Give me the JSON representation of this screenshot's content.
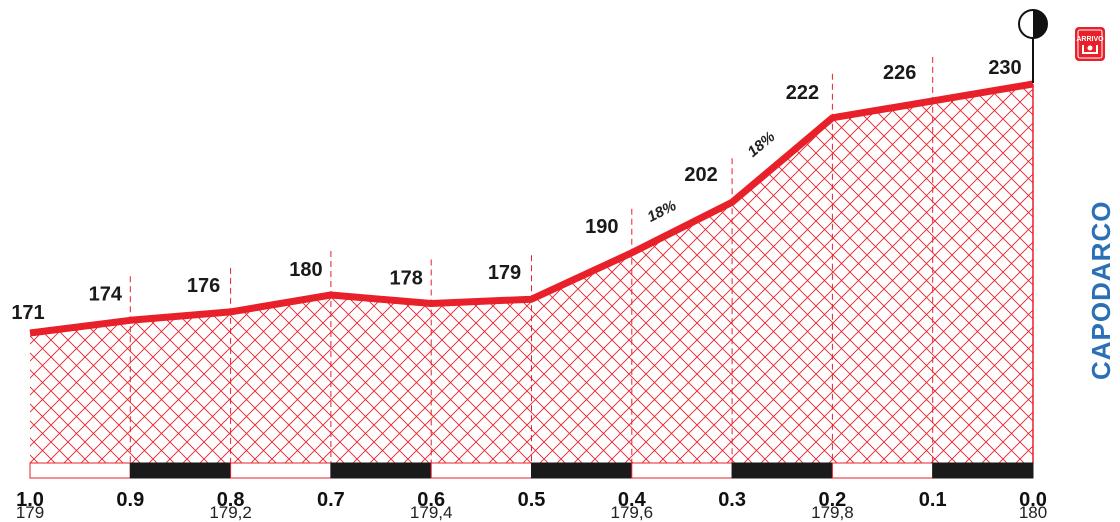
{
  "chart_data": {
    "type": "area",
    "x": [
      1.0,
      0.9,
      0.8,
      0.7,
      0.6,
      0.5,
      0.4,
      0.3,
      0.2,
      0.1,
      0.0
    ],
    "x_tick_labels": [
      "1.0",
      "0.9",
      "0.8",
      "0.7",
      "0.6",
      "0.5",
      "0.4",
      "0.3",
      "0.2",
      "0.1",
      "0.0"
    ],
    "altitudes": [
      171,
      174,
      176,
      180,
      178,
      179,
      190,
      202,
      222,
      226,
      230
    ],
    "altitude_labels": [
      "171",
      "174",
      "176",
      "180",
      "178",
      "179",
      "190",
      "202",
      "222",
      "226",
      "230"
    ],
    "distance_labels": [
      "179",
      "179,2",
      "179,4",
      "179,6",
      "179,8",
      "180"
    ],
    "gradients": [
      {
        "label": "18%",
        "segment_from": 0.4,
        "segment_to": 0.3
      },
      {
        "label": "18%",
        "segment_from": 0.3,
        "segment_to": 0.2
      }
    ],
    "ylim": [
      150,
      240
    ],
    "xlim": [
      1.0,
      0.0
    ],
    "finish_location": "CAPODARCO",
    "finish_badge": "ARRIVO",
    "colors": {
      "profile_line": "#e8202a",
      "hatch": "#e8202a",
      "km_bar_dark": "#1a1a1a",
      "place_label": "#2b6fb6"
    }
  }
}
